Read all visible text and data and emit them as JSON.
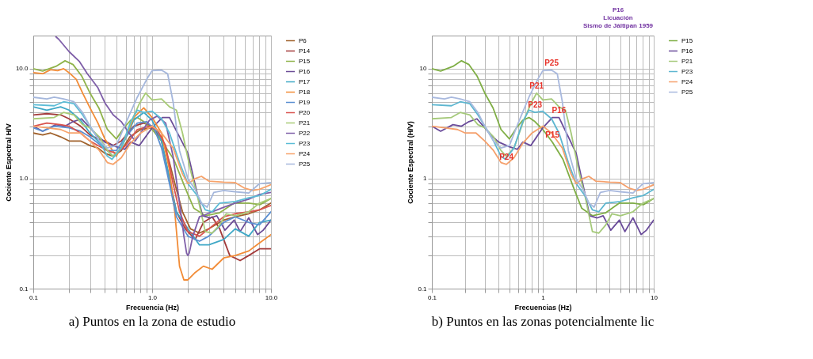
{
  "chart_data": [
    {
      "type": "line",
      "xlabel": "Frecuencia (Hz)",
      "ylabel": "Cociente Espectral H/V",
      "log": "xy",
      "grid": true,
      "legend": "right",
      "xlim": [
        0.1,
        10
      ],
      "ylim": [
        0.1,
        20
      ],
      "xticks": [
        {
          "value": 0.1,
          "label": "0.1"
        },
        {
          "value": 0.2,
          "label": null
        },
        {
          "value": 0.3,
          "label": null
        },
        {
          "value": 0.4,
          "label": null
        },
        {
          "value": 0.5,
          "label": null
        },
        {
          "value": 0.6,
          "label": null
        },
        {
          "value": 0.7,
          "label": null
        },
        {
          "value": 0.8,
          "label": null
        },
        {
          "value": 0.9,
          "label": null
        },
        {
          "value": 1,
          "label": "1.0"
        },
        {
          "value": 2,
          "label": null
        },
        {
          "value": 3,
          "label": null
        },
        {
          "value": 4,
          "label": null
        },
        {
          "value": 5,
          "label": null
        },
        {
          "value": 6,
          "label": null
        },
        {
          "value": 7,
          "label": null
        },
        {
          "value": 8,
          "label": null
        },
        {
          "value": 9,
          "label": null
        },
        {
          "value": 10,
          "label": "10.0"
        }
      ],
      "yticks": [
        {
          "value": 0.1,
          "label": "0.1"
        },
        {
          "value": 0.2,
          "label": null
        },
        {
          "value": 0.3,
          "label": null
        },
        {
          "value": 0.4,
          "label": null
        },
        {
          "value": 0.5,
          "label": null
        },
        {
          "value": 0.6,
          "label": null
        },
        {
          "value": 0.7,
          "label": null
        },
        {
          "value": 0.8,
          "label": null
        },
        {
          "value": 0.9,
          "label": null
        },
        {
          "value": 1,
          "label": "1.0"
        },
        {
          "value": 2,
          "label": null
        },
        {
          "value": 3,
          "label": null
        },
        {
          "value": 4,
          "label": null
        },
        {
          "value": 5,
          "label": null
        },
        {
          "value": 6,
          "label": null
        },
        {
          "value": 7,
          "label": null
        },
        {
          "value": 8,
          "label": null
        },
        {
          "value": 9,
          "label": null
        },
        {
          "value": 10,
          "label": "10.0"
        }
      ],
      "annotations": [
        "a) Puntos en la zona de estudio"
      ],
      "series": [
        {
          "name": "P6",
          "color": "#a0612b",
          "x": [
            0.1,
            0.12,
            0.14,
            0.17,
            0.2,
            0.25,
            0.3,
            0.35,
            0.4,
            0.47,
            0.55,
            0.65,
            0.8,
            1.0,
            1.2,
            1.4,
            1.6,
            1.8,
            2.1,
            2.5,
            3,
            4,
            5,
            6.5,
            8,
            10
          ],
          "values": [
            2.6,
            2.5,
            2.6,
            2.4,
            2.2,
            2.2,
            2.0,
            1.9,
            1.7,
            1.6,
            1.8,
            2.4,
            2.8,
            2.9,
            2.4,
            1.4,
            0.8,
            0.5,
            0.35,
            0.32,
            0.35,
            0.42,
            0.45,
            0.48,
            0.52,
            0.6
          ]
        },
        {
          "name": "P14",
          "color": "#a33b3b",
          "x": [
            0.1,
            0.13,
            0.17,
            0.2,
            0.25,
            0.3,
            0.35,
            0.4,
            0.47,
            0.55,
            0.7,
            0.85,
            1.0,
            1.2,
            1.4,
            1.6,
            1.9,
            2.3,
            2.7,
            3.2,
            3.7,
            4.5,
            5.5,
            6.5,
            8,
            10
          ],
          "values": [
            3.8,
            3.9,
            3.8,
            3.5,
            3.0,
            2.5,
            2.3,
            2.2,
            2.0,
            2.2,
            3.0,
            3.2,
            3.0,
            2.2,
            1.0,
            0.5,
            0.35,
            0.28,
            0.4,
            0.45,
            0.35,
            0.2,
            0.18,
            0.2,
            0.23,
            0.23
          ]
        },
        {
          "name": "P15",
          "color": "#8fb34a",
          "x": [
            0.1,
            0.12,
            0.155,
            0.185,
            0.216,
            0.255,
            0.3,
            0.356,
            0.42,
            0.5,
            0.58,
            0.66,
            0.75,
            0.85,
            1.0,
            1.22,
            1.52,
            1.9,
            2.24,
            2.8,
            3.7,
            4.9,
            6.5,
            8.1,
            10
          ],
          "values": [
            10,
            9.5,
            10.5,
            11.8,
            10.9,
            8.6,
            6.0,
            4.4,
            2.8,
            2.3,
            2.9,
            3.4,
            3.6,
            3.3,
            2.8,
            2.15,
            1.5,
            0.82,
            0.54,
            0.46,
            0.49,
            0.6,
            0.6,
            0.58,
            0.66
          ]
        },
        {
          "name": "P16",
          "color": "#6b4d97",
          "x": [
            0.1,
            0.12,
            0.155,
            0.185,
            0.216,
            0.255,
            0.3,
            0.34,
            0.4,
            0.5,
            0.59,
            0.66,
            0.78,
            1.0,
            1.22,
            1.4,
            1.7,
            2.0,
            2.24,
            2.65,
            3.1,
            3.5,
            4.1,
            4.9,
            5.5,
            6.5,
            7.7,
            8.6,
            10
          ],
          "values": [
            3.0,
            2.7,
            3.1,
            3.0,
            3.3,
            3.5,
            2.9,
            2.5,
            2.15,
            1.95,
            1.85,
            2.15,
            2.0,
            2.9,
            3.6,
            3.6,
            2.4,
            1.7,
            1.0,
            0.46,
            0.44,
            0.46,
            0.34,
            0.42,
            0.33,
            0.44,
            0.31,
            0.34,
            0.42
          ]
        },
        {
          "name": "P17",
          "color": "#3fa8c6",
          "x": [
            0.1,
            0.13,
            0.17,
            0.2,
            0.25,
            0.3,
            0.35,
            0.42,
            0.47,
            0.55,
            0.7,
            0.85,
            1.0,
            1.2,
            1.4,
            1.6,
            2.0,
            2.5,
            3,
            4,
            5,
            6.5,
            8,
            10
          ],
          "values": [
            4.5,
            4.2,
            4.5,
            4.2,
            3.4,
            2.6,
            2.2,
            1.8,
            1.6,
            1.9,
            3.4,
            4.0,
            3.4,
            2.2,
            1.0,
            0.5,
            0.35,
            0.25,
            0.25,
            0.28,
            0.35,
            0.3,
            0.4,
            0.42
          ]
        },
        {
          "name": "P18",
          "color": "#f28c37",
          "x": [
            0.1,
            0.12,
            0.14,
            0.16,
            0.18,
            0.2,
            0.23,
            0.26,
            0.3,
            0.35,
            0.4,
            0.45,
            0.5,
            0.6,
            0.7,
            0.85,
            1.0,
            1.2,
            1.4,
            1.55,
            1.7,
            1.85,
            2.0,
            2.3,
            2.7,
            3.2,
            4,
            5,
            6.5,
            8,
            10
          ],
          "values": [
            9.2,
            9.0,
            9.8,
            9.6,
            10.0,
            9.2,
            8.0,
            6.0,
            4.4,
            3.2,
            2.3,
            1.9,
            1.6,
            2.4,
            3.6,
            4.4,
            3.6,
            2.6,
            1.2,
            0.5,
            0.16,
            0.12,
            0.12,
            0.14,
            0.16,
            0.15,
            0.19,
            0.2,
            0.22,
            0.26,
            0.31
          ]
        },
        {
          "name": "P19",
          "color": "#5b8fd1",
          "x": [
            0.1,
            0.12,
            0.15,
            0.2,
            0.25,
            0.3,
            0.35,
            0.42,
            0.5,
            0.6,
            0.75,
            0.9,
            1.05,
            1.2,
            1.4,
            1.6,
            2.0,
            2.5,
            3,
            4,
            5,
            6.5,
            8,
            10
          ],
          "values": [
            2.9,
            2.7,
            3.0,
            2.9,
            2.7,
            2.4,
            2.1,
            1.8,
            1.8,
            2.4,
            3.2,
            3.3,
            2.8,
            1.9,
            0.9,
            0.45,
            0.3,
            0.27,
            0.3,
            0.4,
            0.45,
            0.4,
            0.38,
            0.5
          ]
        },
        {
          "name": "P20",
          "color": "#d9534f",
          "x": [
            0.1,
            0.13,
            0.17,
            0.2,
            0.25,
            0.3,
            0.35,
            0.42,
            0.5,
            0.6,
            0.75,
            0.95,
            1.1,
            1.3,
            1.5,
            1.7,
            2.0,
            2.5,
            3,
            4,
            5,
            6.5,
            8,
            10
          ],
          "values": [
            3.0,
            3.2,
            3.1,
            3.0,
            2.6,
            2.2,
            2.0,
            1.8,
            1.7,
            2.0,
            2.8,
            3.0,
            2.8,
            2.0,
            0.9,
            0.5,
            0.33,
            0.3,
            0.35,
            0.45,
            0.48,
            0.5,
            0.52,
            0.57
          ]
        },
        {
          "name": "P21",
          "color": "#a8cb76",
          "x": [
            0.1,
            0.15,
            0.18,
            0.22,
            0.26,
            0.3,
            0.36,
            0.42,
            0.47,
            0.55,
            0.66,
            0.78,
            0.88,
            1.0,
            1.2,
            1.4,
            1.6,
            1.8,
            2.1,
            2.4,
            2.8,
            3.2,
            3.7,
            4.2,
            5,
            6.5,
            8,
            10
          ],
          "values": [
            3.5,
            3.6,
            4.0,
            3.8,
            3.1,
            2.9,
            2.4,
            1.8,
            1.6,
            1.9,
            3.2,
            4.8,
            6.0,
            5.2,
            5.3,
            4.5,
            4.2,
            2.6,
            1.2,
            0.7,
            0.33,
            0.32,
            0.38,
            0.48,
            0.46,
            0.5,
            0.6,
            0.66
          ]
        },
        {
          "name": "P22",
          "color": "#7e5ea8",
          "x": [
            0.155,
            0.164,
            0.2,
            0.245,
            0.285,
            0.35,
            0.4,
            0.47,
            0.55,
            0.63,
            0.72,
            0.81,
            0.95,
            1.1,
            1.3,
            1.5,
            1.7,
            1.85,
            1.95,
            2.0,
            2.05,
            2.2,
            2.5,
            2.8,
            3.2,
            4,
            5,
            6.5,
            8,
            10
          ],
          "values": [
            19.5,
            18.5,
            14.3,
            11.6,
            9.0,
            6.7,
            4.9,
            3.8,
            3.3,
            2.65,
            2.2,
            2.65,
            3.4,
            3.7,
            3.2,
            1.6,
            0.6,
            0.3,
            0.21,
            0.2,
            0.21,
            0.3,
            0.45,
            0.47,
            0.5,
            0.55,
            0.6,
            0.65,
            0.72,
            0.75
          ]
        },
        {
          "name": "P23",
          "color": "#5bbcd6",
          "x": [
            0.1,
            0.15,
            0.18,
            0.22,
            0.26,
            0.3,
            0.36,
            0.42,
            0.46,
            0.55,
            0.66,
            0.75,
            0.85,
            1.0,
            1.2,
            1.4,
            1.7,
            2.0,
            2.4,
            2.8,
            3.2,
            3.7,
            5,
            6.5,
            8,
            10
          ],
          "values": [
            4.7,
            4.6,
            5.0,
            4.8,
            3.8,
            3.0,
            2.2,
            1.6,
            1.5,
            1.9,
            3.3,
            4.2,
            4.0,
            4.1,
            3.5,
            2.6,
            1.4,
            0.9,
            0.7,
            0.52,
            0.5,
            0.6,
            0.62,
            0.67,
            0.7,
            0.8
          ]
        },
        {
          "name": "P24",
          "color": "#f7a36b",
          "x": [
            0.1,
            0.13,
            0.17,
            0.2,
            0.25,
            0.3,
            0.36,
            0.42,
            0.47,
            0.55,
            0.66,
            0.8,
            1.0,
            1.2,
            1.5,
            1.8,
            2.0,
            2.3,
            2.6,
            3,
            4,
            5,
            6,
            7,
            8,
            10
          ],
          "values": [
            3.0,
            2.9,
            2.8,
            2.6,
            2.6,
            2.2,
            1.8,
            1.4,
            1.35,
            1.55,
            2.1,
            2.6,
            3.0,
            2.6,
            1.9,
            1.1,
            0.9,
            1.0,
            1.05,
            0.95,
            0.93,
            0.92,
            0.82,
            0.78,
            0.8,
            0.88
          ]
        },
        {
          "name": "P25",
          "color": "#a5b7dc",
          "x": [
            0.1,
            0.13,
            0.15,
            0.18,
            0.22,
            0.26,
            0.3,
            0.36,
            0.42,
            0.5,
            0.6,
            0.75,
            0.9,
            1.0,
            1.2,
            1.35,
            1.5,
            1.7,
            2.0,
            2.3,
            2.6,
            2.9,
            3.3,
            4,
            5,
            6.5,
            8,
            10
          ],
          "values": [
            5.5,
            5.3,
            5.5,
            5.3,
            5.0,
            4.0,
            3.0,
            2.2,
            1.9,
            2.0,
            3.2,
            5.5,
            8.0,
            9.6,
            9.7,
            9.0,
            5.0,
            1.8,
            1.0,
            0.8,
            0.6,
            0.55,
            0.75,
            0.78,
            0.76,
            0.74,
            0.9,
            0.92
          ]
        }
      ]
    },
    {
      "type": "line",
      "xlabel": "Frecuencias (Hz)",
      "ylabel": "Cociente Espectral  (H/V)",
      "log": "xy",
      "grid": true,
      "legend": "right",
      "xlim": [
        0.1,
        10
      ],
      "ylim": [
        0.1,
        20
      ],
      "xticks": [
        0.1,
        {
          "value": 0.2,
          "label": null
        },
        {
          "value": 0.3,
          "label": null
        },
        {
          "value": 0.4,
          "label": null
        },
        {
          "value": 0.5,
          "label": null
        },
        {
          "value": 0.6,
          "label": null
        },
        {
          "value": 0.7,
          "label": null
        },
        {
          "value": 0.8,
          "label": null
        },
        {
          "value": 0.9,
          "label": null
        },
        1,
        {
          "value": 2,
          "label": null
        },
        {
          "value": 3,
          "label": null
        },
        {
          "value": 4,
          "label": null
        },
        {
          "value": 5,
          "label": null
        },
        {
          "value": 6,
          "label": null
        },
        {
          "value": 7,
          "label": null
        },
        {
          "value": 8,
          "label": null
        },
        {
          "value": 9,
          "label": null
        },
        10
      ],
      "yticks": [
        0.1,
        {
          "value": 0.2,
          "label": null
        },
        {
          "value": 0.3,
          "label": null
        },
        {
          "value": 0.4,
          "label": null
        },
        {
          "value": 0.5,
          "label": null
        },
        {
          "value": 0.6,
          "label": null
        },
        {
          "value": 0.7,
          "label": null
        },
        {
          "value": 0.8,
          "label": null
        },
        {
          "value": 0.9,
          "label": null
        },
        1,
        {
          "value": 2,
          "label": null
        },
        {
          "value": 3,
          "label": null
        },
        {
          "value": 4,
          "label": null
        },
        {
          "value": 5,
          "label": null
        },
        {
          "value": 6,
          "label": null
        },
        {
          "value": 7,
          "label": null
        },
        {
          "value": 8,
          "label": null
        },
        {
          "value": 9,
          "label": null
        },
        10
      ],
      "annotations": [
        "P16",
        "Licuación",
        "Sismo de Jáltipan 1959",
        {
          "text": "P25",
          "x": 1.2,
          "y": 9.7
        },
        {
          "text": "P21",
          "x": 0.88,
          "y": 6.0
        },
        {
          "text": "P23",
          "x": 0.85,
          "y": 4.0
        },
        {
          "text": "P16",
          "x": 1.4,
          "y": 3.6
        },
        {
          "text": "P15",
          "x": 1.22,
          "y": 2.15
        },
        {
          "text": "P24",
          "x": 0.47,
          "y": 1.35
        },
        "b) Puntos en las zonas potencialmente lic"
      ],
      "series": [
        {
          "name": "P15",
          "color": "#7fae45",
          "x": [
            0.1,
            0.12,
            0.155,
            0.185,
            0.216,
            0.255,
            0.3,
            0.356,
            0.42,
            0.5,
            0.58,
            0.66,
            0.75,
            0.85,
            1.0,
            1.22,
            1.52,
            1.9,
            2.24,
            2.8,
            3.7,
            4.9,
            6.5,
            8.1,
            10
          ],
          "values": [
            10,
            9.5,
            10.5,
            11.8,
            10.9,
            8.6,
            6.0,
            4.4,
            2.8,
            2.3,
            2.9,
            3.4,
            3.6,
            3.3,
            2.8,
            2.15,
            1.5,
            0.82,
            0.54,
            0.46,
            0.49,
            0.6,
            0.6,
            0.58,
            0.66
          ]
        },
        {
          "name": "P16",
          "color": "#6a4b9a",
          "x": [
            0.1,
            0.12,
            0.155,
            0.185,
            0.216,
            0.255,
            0.3,
            0.34,
            0.4,
            0.5,
            0.59,
            0.66,
            0.78,
            1.0,
            1.22,
            1.4,
            1.7,
            2.0,
            2.24,
            2.65,
            3.1,
            3.5,
            4.1,
            4.9,
            5.5,
            6.5,
            7.7,
            8.6,
            10
          ],
          "values": [
            3.0,
            2.7,
            3.1,
            3.0,
            3.3,
            3.5,
            2.9,
            2.5,
            2.15,
            1.95,
            1.85,
            2.15,
            2.0,
            2.9,
            3.6,
            3.6,
            2.4,
            1.7,
            1.0,
            0.46,
            0.44,
            0.46,
            0.34,
            0.42,
            0.33,
            0.44,
            0.31,
            0.34,
            0.42
          ]
        },
        {
          "name": "P21",
          "color": "#a5c97a",
          "x": [
            0.1,
            0.15,
            0.18,
            0.22,
            0.26,
            0.3,
            0.36,
            0.42,
            0.47,
            0.55,
            0.66,
            0.78,
            0.88,
            1.0,
            1.2,
            1.4,
            1.6,
            1.8,
            2.1,
            2.4,
            2.8,
            3.2,
            3.7,
            4.2,
            5,
            6.5,
            8,
            10
          ],
          "values": [
            3.5,
            3.6,
            4.0,
            3.8,
            3.1,
            2.9,
            2.4,
            1.8,
            1.6,
            1.9,
            3.2,
            4.8,
            6.0,
            5.2,
            5.3,
            4.5,
            4.2,
            2.6,
            1.2,
            0.7,
            0.33,
            0.32,
            0.38,
            0.48,
            0.46,
            0.5,
            0.6,
            0.66
          ]
        },
        {
          "name": "P23",
          "color": "#5db6d0",
          "x": [
            0.1,
            0.15,
            0.18,
            0.22,
            0.26,
            0.3,
            0.36,
            0.42,
            0.46,
            0.55,
            0.66,
            0.75,
            0.85,
            1.0,
            1.2,
            1.4,
            1.7,
            2.0,
            2.4,
            2.8,
            3.2,
            3.7,
            5,
            6.5,
            8,
            10
          ],
          "values": [
            4.7,
            4.6,
            5.0,
            4.8,
            3.8,
            3.0,
            2.2,
            1.6,
            1.5,
            1.9,
            3.3,
            4.2,
            4.0,
            4.1,
            3.5,
            2.6,
            1.4,
            0.9,
            0.7,
            0.52,
            0.5,
            0.6,
            0.62,
            0.67,
            0.7,
            0.8
          ]
        },
        {
          "name": "P24",
          "color": "#f5a06c",
          "x": [
            0.1,
            0.13,
            0.17,
            0.2,
            0.25,
            0.3,
            0.36,
            0.42,
            0.47,
            0.55,
            0.66,
            0.8,
            1.0,
            1.2,
            1.5,
            1.8,
            2.0,
            2.3,
            2.6,
            3,
            4,
            5,
            6,
            7,
            8,
            10
          ],
          "values": [
            3.0,
            2.9,
            2.8,
            2.6,
            2.6,
            2.2,
            1.8,
            1.4,
            1.35,
            1.55,
            2.1,
            2.6,
            3.0,
            2.6,
            1.9,
            1.1,
            0.9,
            1.0,
            1.05,
            0.95,
            0.93,
            0.92,
            0.82,
            0.78,
            0.8,
            0.88
          ]
        },
        {
          "name": "P25",
          "color": "#a9b9de",
          "x": [
            0.1,
            0.13,
            0.15,
            0.18,
            0.22,
            0.26,
            0.3,
            0.36,
            0.42,
            0.5,
            0.6,
            0.75,
            0.9,
            1.0,
            1.2,
            1.35,
            1.5,
            1.7,
            2.0,
            2.3,
            2.6,
            2.9,
            3.3,
            4,
            5,
            6.5,
            8,
            10
          ],
          "values": [
            5.5,
            5.3,
            5.5,
            5.3,
            5.0,
            4.0,
            3.0,
            2.2,
            1.9,
            2.0,
            3.2,
            5.5,
            8.0,
            9.6,
            9.7,
            9.0,
            5.0,
            1.8,
            1.0,
            0.8,
            0.6,
            0.55,
            0.75,
            0.78,
            0.76,
            0.74,
            0.9,
            0.92
          ]
        }
      ]
    }
  ]
}
